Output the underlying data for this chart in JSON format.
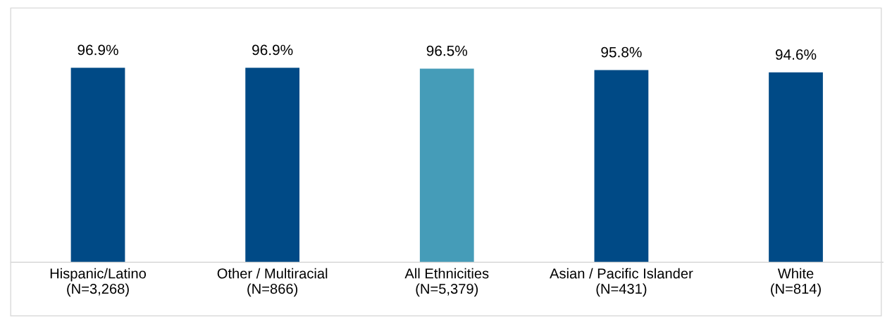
{
  "chart_data": {
    "type": "bar",
    "categories": [
      "Hispanic/Latino\n(N=3,268)",
      "Other / Multiracial\n(N=866)",
      "All Ethnicities\n(N=5,379)",
      "Asian / Pacific Islander\n(N=431)",
      "White\n(N=814)"
    ],
    "values": [
      96.9,
      96.9,
      96.5,
      95.8,
      94.6
    ],
    "colors": [
      "#004a86",
      "#004a86",
      "#459cb8",
      "#004a86",
      "#004a86"
    ],
    "value_labels": [
      "96.9%",
      "96.9%",
      "96.5%",
      "95.8%",
      "94.6%"
    ],
    "grid": false,
    "legend": false
  }
}
